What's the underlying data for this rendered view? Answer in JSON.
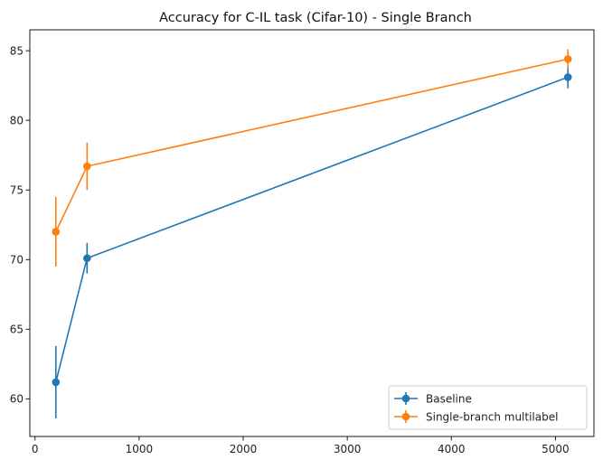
{
  "chart_data": {
    "type": "line",
    "title": "Accuracy for C-IL task (Cifar-10) - Single Branch",
    "xlabel": "",
    "ylabel": "",
    "xlim": [
      -50,
      5370
    ],
    "ylim": [
      57.3,
      86.5
    ],
    "xticks": [
      0,
      1000,
      2000,
      3000,
      4000,
      5000
    ],
    "yticks": [
      60,
      65,
      70,
      75,
      80,
      85
    ],
    "grid": false,
    "legend_position": "lower-right",
    "series": [
      {
        "name": "Baseline",
        "color": "#1f77b4",
        "x": [
          200,
          500,
          5120
        ],
        "y": [
          61.2,
          70.1,
          83.1
        ],
        "yerr": [
          2.6,
          1.1,
          0.8
        ]
      },
      {
        "name": "Single-branch multilabel",
        "color": "#ff7f0e",
        "x": [
          200,
          500,
          5120
        ],
        "y": [
          72.0,
          76.7,
          84.4
        ],
        "yerr": [
          2.5,
          1.7,
          0.7
        ]
      }
    ]
  }
}
